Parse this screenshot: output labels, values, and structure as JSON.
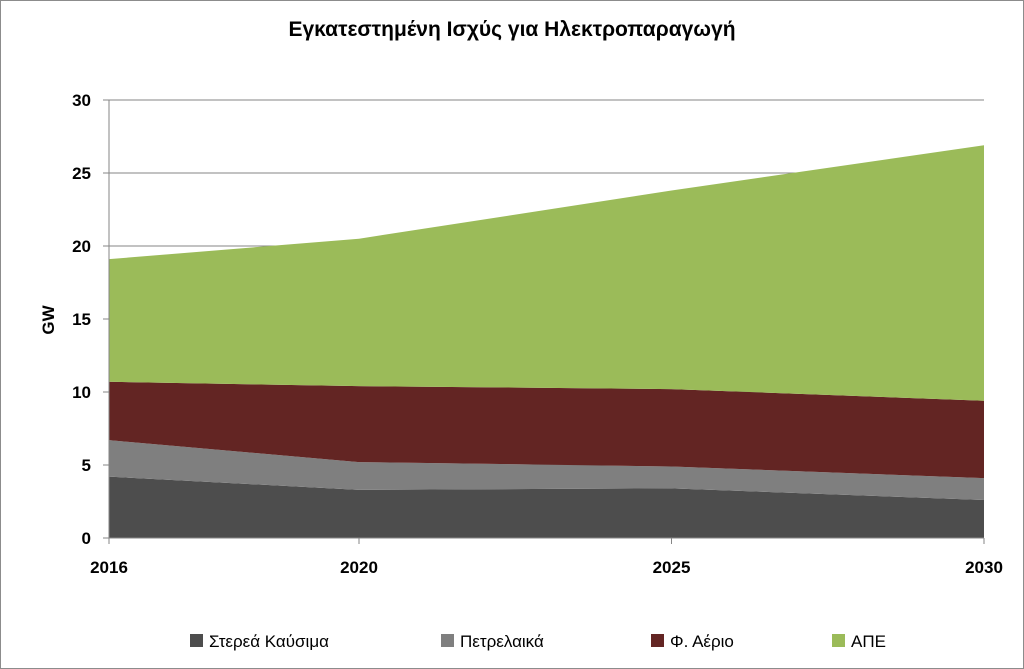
{
  "chart_data": {
    "type": "area",
    "stacked": true,
    "title": "Εγκατεστημένη Ισχύς για Ηλεκτροπαραγωγή",
    "xlabel": "",
    "ylabel": "GW",
    "x": [
      "2016",
      "2020",
      "2025",
      "2030"
    ],
    "x_values": [
      2016,
      2020,
      2025,
      2030
    ],
    "xlim": [
      2016,
      2030
    ],
    "ylim": [
      0,
      30
    ],
    "yticks": [
      0,
      5,
      10,
      15,
      20,
      25,
      30
    ],
    "grid": true,
    "legend_position": "bottom",
    "series": [
      {
        "name": "Στερεά Καύσιμα",
        "color": "#4d4d4d",
        "values": [
          4.2,
          3.3,
          3.4,
          2.6
        ]
      },
      {
        "name": "Πετρελαικά",
        "color": "#7f7f7f",
        "values": [
          2.5,
          1.9,
          1.5,
          1.5
        ]
      },
      {
        "name": "Φ. Αέριο",
        "color": "#632523",
        "values": [
          4.0,
          5.2,
          5.3,
          5.3
        ]
      },
      {
        "name": "ΑΠΕ",
        "color": "#9bbb59",
        "values": [
          8.4,
          10.1,
          13.6,
          17.5
        ]
      }
    ]
  }
}
